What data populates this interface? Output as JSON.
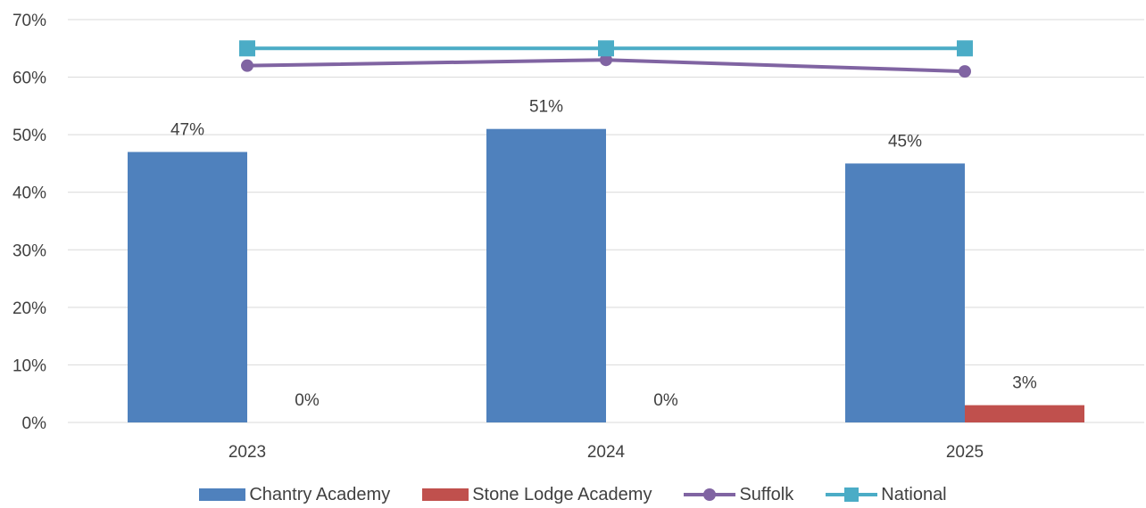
{
  "chart_data": {
    "type": "bar",
    "title": "",
    "xlabel": "",
    "ylabel": "",
    "ylim": [
      0,
      70
    ],
    "yticks": [
      0,
      10,
      20,
      30,
      40,
      50,
      60,
      70
    ],
    "ytick_labels": [
      "0%",
      "10%",
      "20%",
      "30%",
      "40%",
      "50%",
      "60%",
      "70%"
    ],
    "categories": [
      "2023",
      "2024",
      "2025"
    ],
    "grid": true,
    "legend_position": "bottom",
    "series": [
      {
        "name": "Chantry Academy",
        "kind": "bar",
        "color": "#4F81BD",
        "values": [
          47,
          51,
          45
        ],
        "labels": [
          "47%",
          "51%",
          "45%"
        ]
      },
      {
        "name": "Stone Lodge Academy",
        "kind": "bar",
        "color": "#C0504D",
        "values": [
          0,
          0,
          3
        ],
        "labels": [
          "0%",
          "0%",
          "3%"
        ]
      },
      {
        "name": "Suffolk",
        "kind": "line",
        "marker": "circle",
        "color": "#8064A2",
        "values": [
          62,
          63,
          61
        ]
      },
      {
        "name": "National",
        "kind": "line",
        "marker": "square",
        "color": "#4BACC6",
        "values": [
          65,
          65,
          65
        ]
      }
    ]
  }
}
